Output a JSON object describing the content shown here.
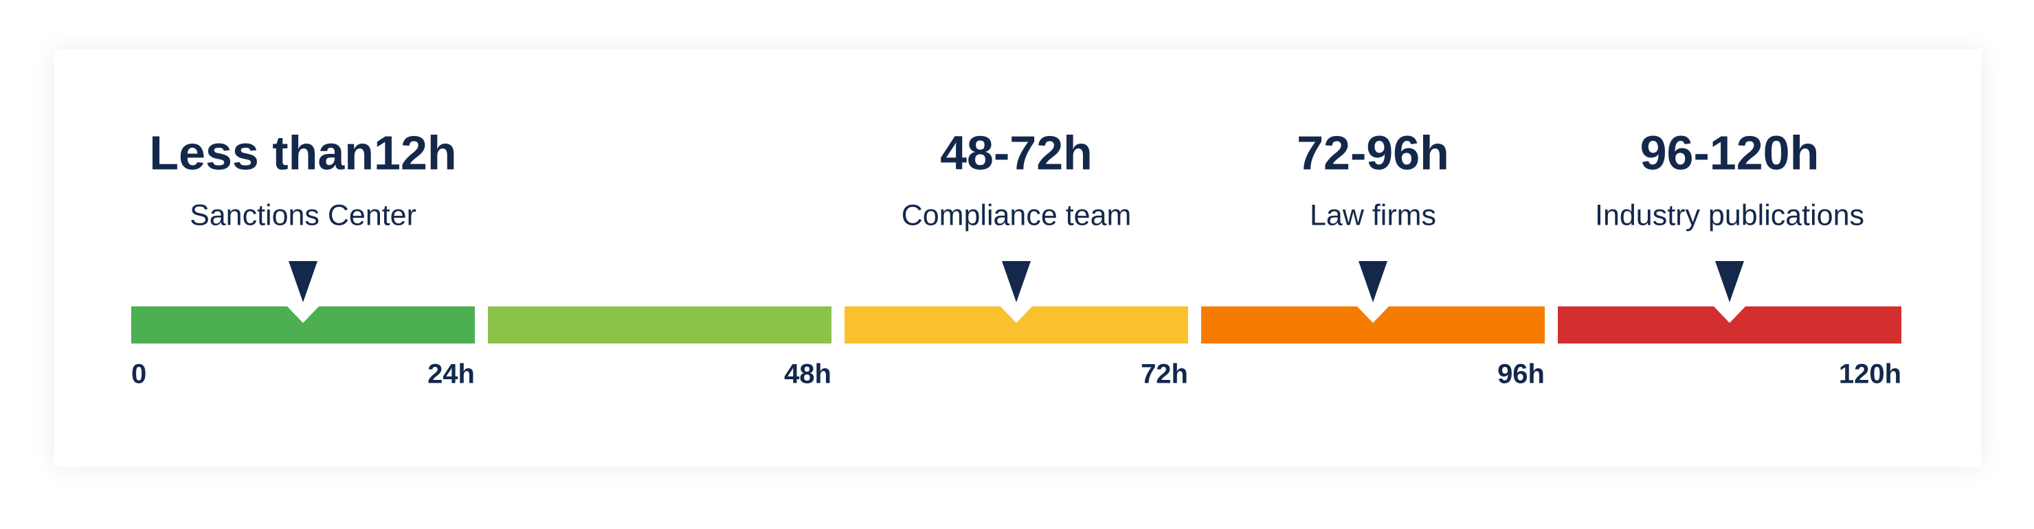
{
  "scale": {
    "start_label": "0",
    "segments": [
      {
        "color": "#4caf50",
        "end_label": "24h",
        "marker": {
          "title": "Less than12h",
          "label": "Sanctions Center"
        }
      },
      {
        "color": "#8bc34a",
        "end_label": "48h"
      },
      {
        "color": "#fbc02d",
        "end_label": "72h",
        "marker": {
          "title": "48-72h",
          "label": "Compliance team"
        }
      },
      {
        "color": "#f57c00",
        "end_label": "96h",
        "marker": {
          "title": "72-96h",
          "label": "Law firms"
        }
      },
      {
        "color": "#d32f2f",
        "end_label": "120h",
        "marker": {
          "title": "96-120h",
          "label": "Industry publications"
        }
      }
    ],
    "text_color": "#14284b"
  }
}
